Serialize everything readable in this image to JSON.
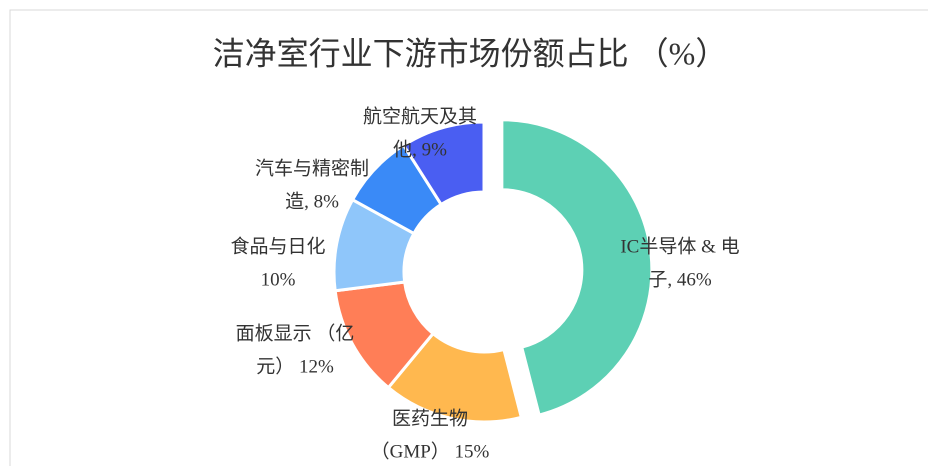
{
  "chart_data": {
    "type": "donut",
    "title": "洁净室行业下游市场份额占比 （%）",
    "categories": [
      "IC半导体 & 电子",
      "医药生物（GMP）",
      "面板显示（亿元）",
      "食品与日化",
      "汽车与精密制造",
      "航空航天及其他"
    ],
    "values": [
      46,
      15,
      12,
      10,
      8,
      9
    ],
    "value_labels": [
      [
        "IC半导体 & 电",
        "子, 46%"
      ],
      [
        "医药生物",
        "（GMP） 15%"
      ],
      [
        "面板显示 （亿",
        "元） 12%"
      ],
      [
        "食品与日化",
        "10%"
      ],
      [
        "汽车与精密制",
        "造, 8%"
      ],
      [
        "航空航天及其",
        "他, 9%"
      ]
    ],
    "colors": [
      "#5dd0b4",
      "#ffb84f",
      "#ff7e57",
      "#8fc6fa",
      "#3a8af7",
      "#4a5ef2"
    ]
  }
}
